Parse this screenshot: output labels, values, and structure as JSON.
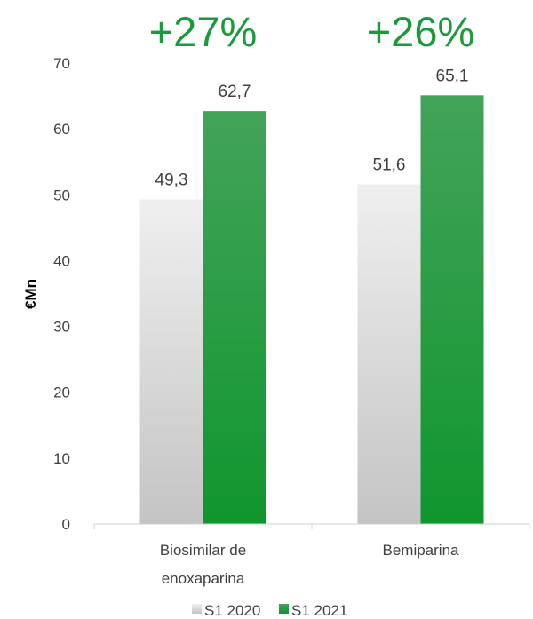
{
  "chart_data": {
    "type": "bar",
    "categories": [
      [
        "Biosimilar de",
        "enoxaparina"
      ],
      [
        "Bemiparina"
      ]
    ],
    "series": [
      {
        "name": "S1 2020",
        "values": [
          49.3,
          51.6
        ],
        "labels": [
          "49,3",
          "51,6"
        ],
        "color": "#d9d9d9"
      },
      {
        "name": "S1 2021",
        "values": [
          62.7,
          65.1
        ],
        "labels": [
          "62,7",
          "65,1"
        ],
        "color": "#1f9a3e"
      }
    ],
    "growth": [
      "+27%",
      "+26%"
    ],
    "growth_color": "#1a9a3a",
    "ylabel": "€Mn",
    "ylim": [
      0,
      70
    ],
    "yticks": [
      "0",
      "10",
      "20",
      "30",
      "40",
      "50",
      "60",
      "70"
    ],
    "grid": false,
    "legend": "bottom"
  }
}
